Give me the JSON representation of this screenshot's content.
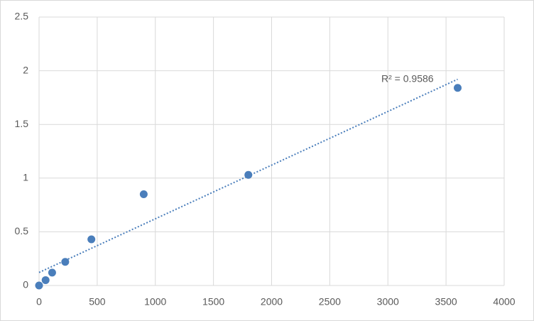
{
  "chart_data": {
    "type": "scatter",
    "series": [
      {
        "color": "#4a7ebb",
        "x": [
          0,
          56.25,
          112.5,
          225,
          450,
          900,
          1800,
          3600
        ],
        "values": [
          0,
          0.05,
          0.12,
          0.22,
          0.43,
          0.85,
          1.03,
          1.84
        ]
      }
    ],
    "trendline": "linear",
    "annotation": "R² = 0.9586",
    "xlim": [
      0,
      4000
    ],
    "xticks": [
      0,
      500,
      1000,
      1500,
      2000,
      2500,
      3000,
      3500,
      4000
    ],
    "ylim": [
      0,
      2.5
    ],
    "yticks": [
      0,
      0.5,
      1,
      1.5,
      2,
      2.5
    ],
    "grid": true
  }
}
